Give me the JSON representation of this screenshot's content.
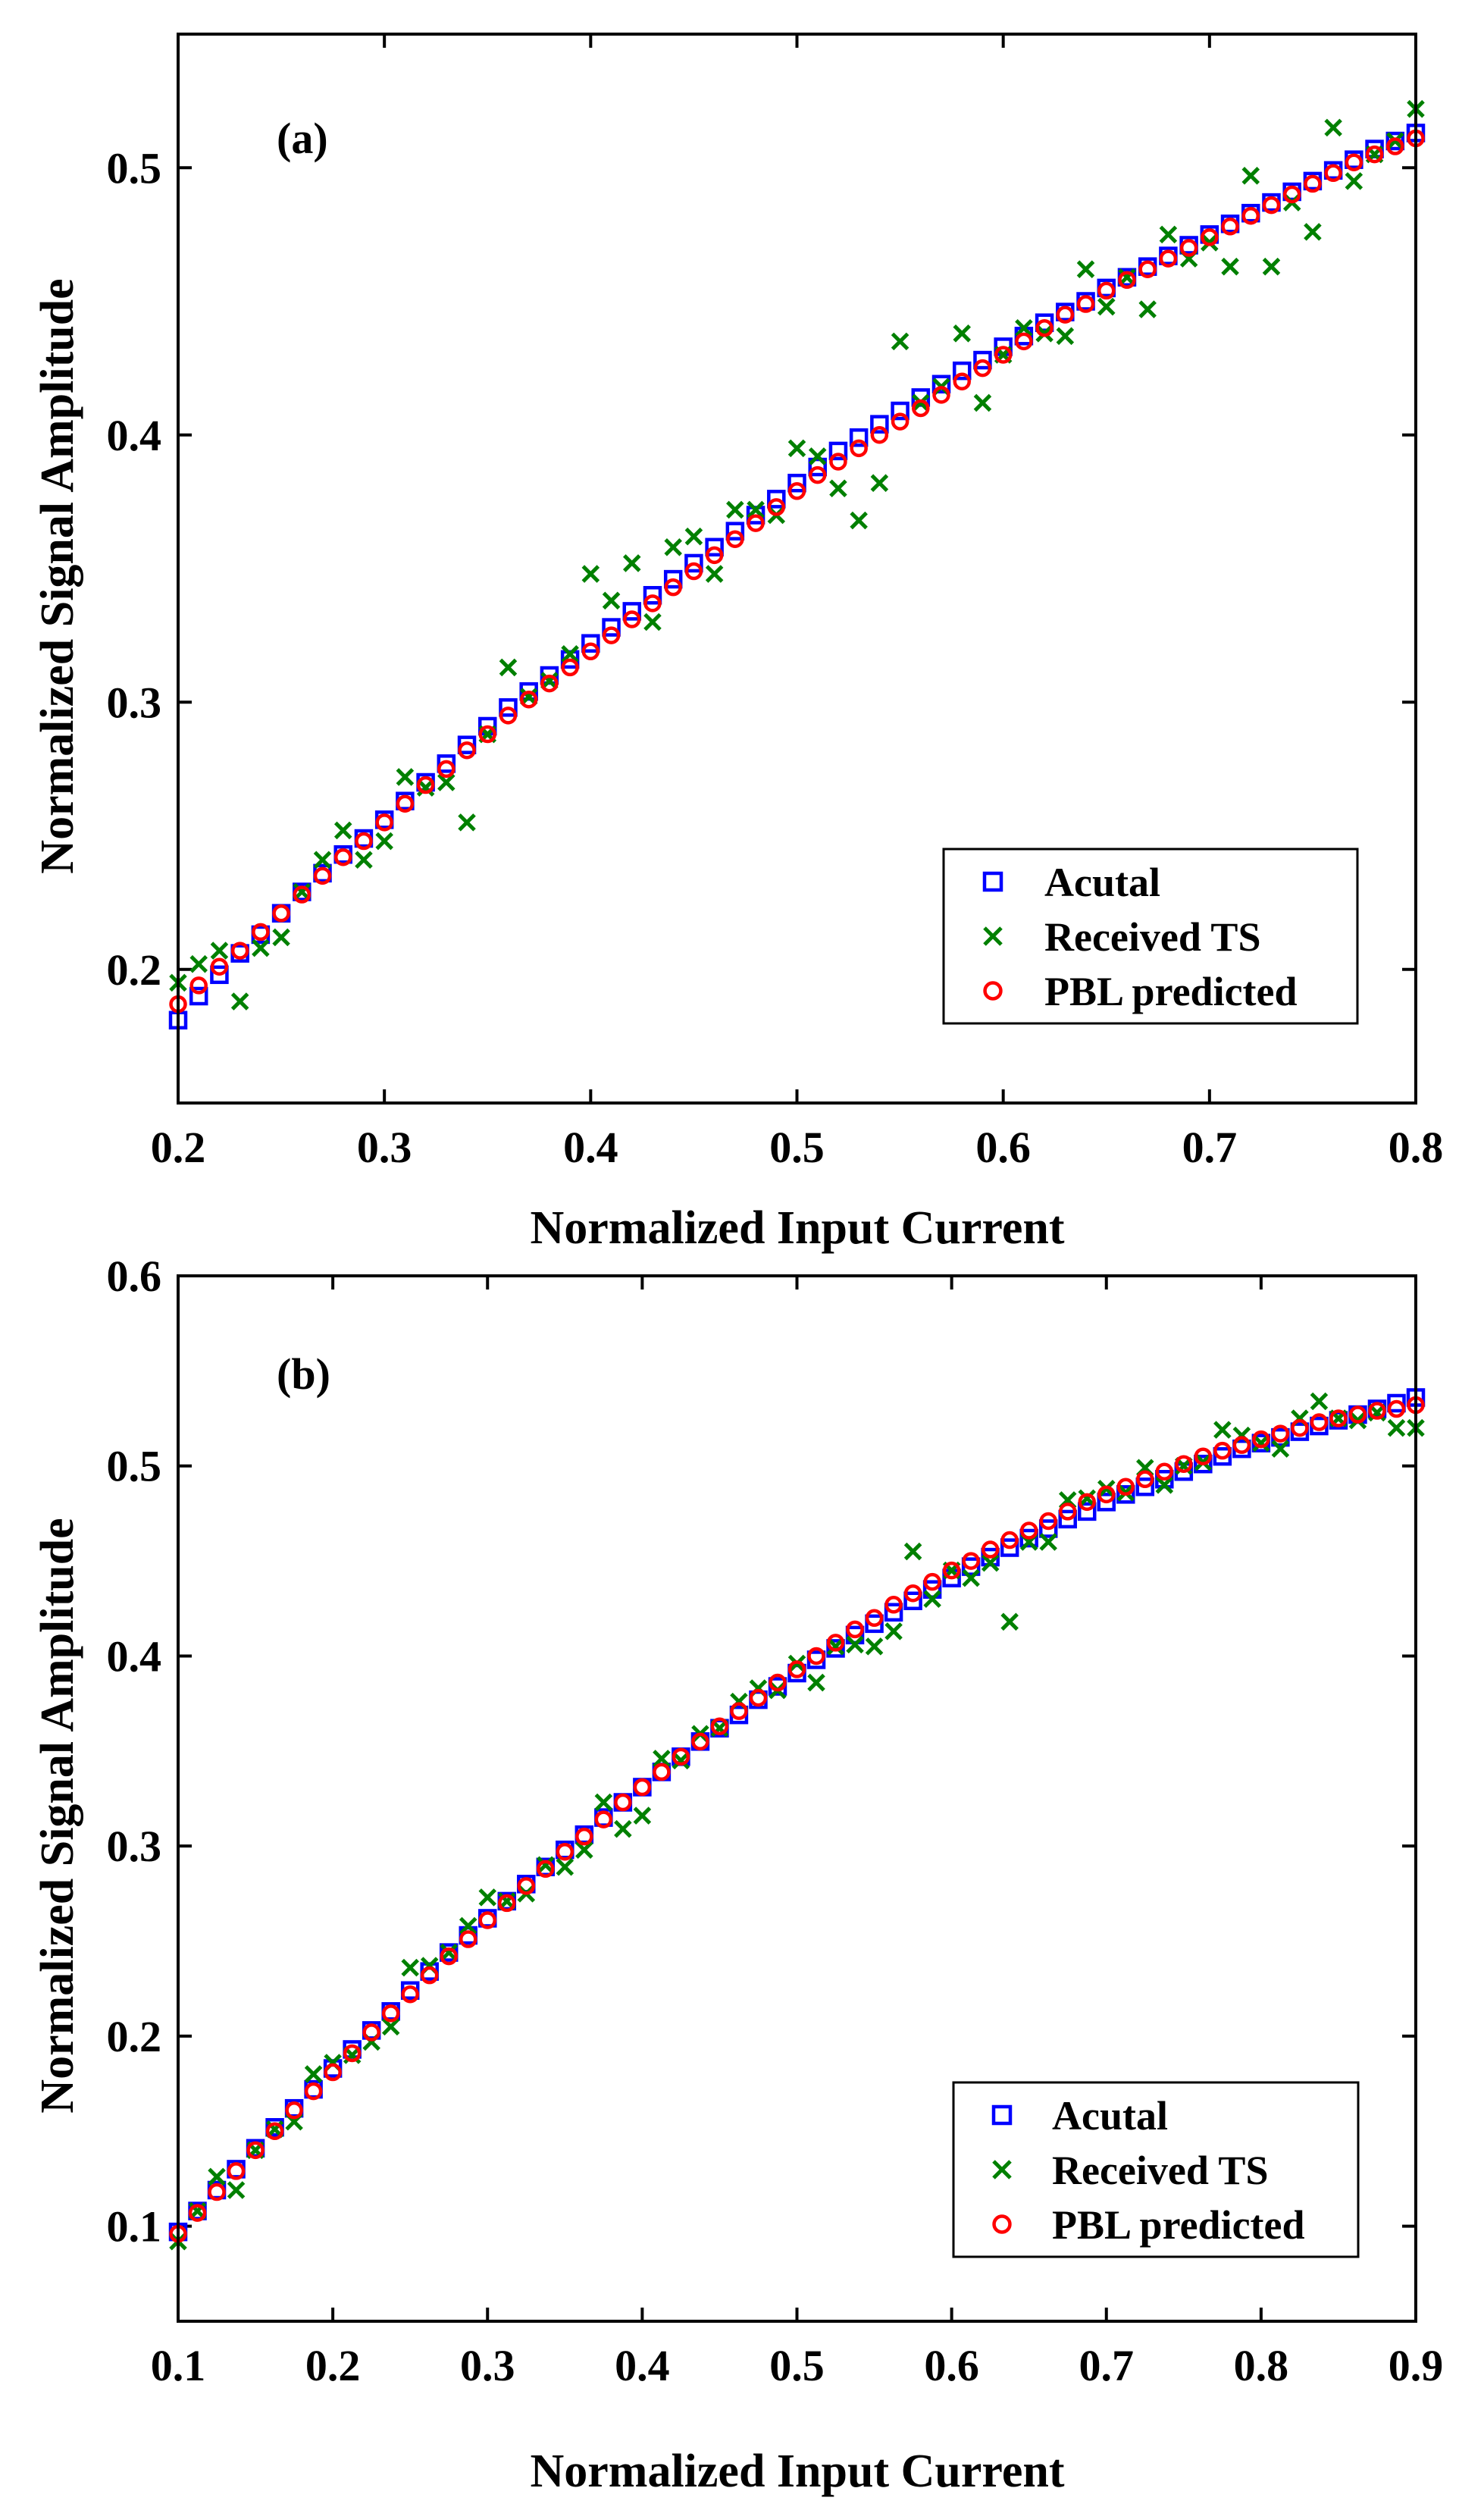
{
  "chart_data": [
    {
      "type": "scatter",
      "panel_label": "(a)",
      "xlabel": "Normalized Input Current",
      "ylabel": "Normalized Signal Amplitude",
      "xlim": [
        0.2,
        0.8
      ],
      "ylim": [
        0.15,
        0.55
      ],
      "xticks": [
        0.2,
        0.3,
        0.4,
        0.5,
        0.6,
        0.7,
        0.8
      ],
      "yticks": [
        0.2,
        0.3,
        0.4,
        0.5
      ],
      "xtick_labels": [
        "0.2",
        "0.3",
        "0.4",
        "0.5",
        "0.6",
        "0.7",
        "0.8"
      ],
      "ytick_labels": [
        "0.2",
        "0.3",
        "0.4",
        "0.5"
      ],
      "legend_position": "bottom-right",
      "series": [
        {
          "name": "Acutal",
          "marker": "square",
          "color": "#0000ff",
          "x": [
            0.2,
            0.21,
            0.22,
            0.23,
            0.24,
            0.25,
            0.26,
            0.27,
            0.28,
            0.29,
            0.3,
            0.31,
            0.32,
            0.33,
            0.34,
            0.35,
            0.36,
            0.37,
            0.38,
            0.39,
            0.4,
            0.41,
            0.42,
            0.43,
            0.44,
            0.45,
            0.46,
            0.47,
            0.48,
            0.49,
            0.5,
            0.51,
            0.52,
            0.53,
            0.54,
            0.55,
            0.56,
            0.57,
            0.58,
            0.59,
            0.6,
            0.61,
            0.62,
            0.63,
            0.64,
            0.65,
            0.66,
            0.67,
            0.68,
            0.69,
            0.7,
            0.71,
            0.72,
            0.73,
            0.74,
            0.75,
            0.76,
            0.77,
            0.78,
            0.79,
            0.8
          ],
          "y": [
            0.181,
            0.19,
            0.198,
            0.206,
            0.213,
            0.221,
            0.229,
            0.236,
            0.243,
            0.249,
            0.256,
            0.263,
            0.27,
            0.277,
            0.284,
            0.291,
            0.298,
            0.304,
            0.31,
            0.316,
            0.322,
            0.328,
            0.334,
            0.34,
            0.346,
            0.352,
            0.358,
            0.364,
            0.37,
            0.376,
            0.382,
            0.388,
            0.394,
            0.399,
            0.404,
            0.409,
            0.414,
            0.419,
            0.424,
            0.428,
            0.433,
            0.437,
            0.442,
            0.446,
            0.45,
            0.455,
            0.459,
            0.463,
            0.467,
            0.471,
            0.475,
            0.479,
            0.483,
            0.487,
            0.491,
            0.495,
            0.499,
            0.503,
            0.507,
            0.51,
            0.513
          ]
        },
        {
          "name": "Received TS",
          "marker": "x",
          "color": "#008000",
          "x": [
            0.2,
            0.21,
            0.22,
            0.23,
            0.24,
            0.25,
            0.26,
            0.27,
            0.28,
            0.29,
            0.3,
            0.31,
            0.32,
            0.33,
            0.34,
            0.35,
            0.36,
            0.37,
            0.38,
            0.39,
            0.4,
            0.41,
            0.42,
            0.43,
            0.44,
            0.45,
            0.46,
            0.47,
            0.48,
            0.49,
            0.5,
            0.51,
            0.52,
            0.53,
            0.54,
            0.55,
            0.56,
            0.57,
            0.58,
            0.59,
            0.6,
            0.61,
            0.62,
            0.63,
            0.64,
            0.65,
            0.66,
            0.67,
            0.68,
            0.69,
            0.7,
            0.71,
            0.72,
            0.73,
            0.74,
            0.75,
            0.76,
            0.77,
            0.78,
            0.79,
            0.8
          ],
          "y": [
            0.195,
            0.202,
            0.207,
            0.188,
            0.208,
            0.212,
            0.229,
            0.241,
            0.252,
            0.241,
            0.248,
            0.272,
            0.268,
            0.27,
            0.255,
            0.288,
            0.313,
            0.302,
            0.308,
            0.318,
            0.348,
            0.338,
            0.352,
            0.33,
            0.358,
            0.362,
            0.348,
            0.372,
            0.372,
            0.37,
            0.395,
            0.392,
            0.38,
            0.368,
            0.382,
            0.435,
            0.412,
            0.418,
            0.438,
            0.412,
            0.43,
            0.44,
            0.438,
            0.437,
            0.462,
            0.448,
            0.459,
            0.447,
            0.475,
            0.466,
            0.472,
            0.463,
            0.497,
            0.463,
            0.487,
            0.476,
            0.515,
            0.495,
            0.505,
            0.51,
            0.522
          ]
        },
        {
          "name": "PBL predicted",
          "marker": "circle",
          "color": "#ff0000",
          "x": [
            0.2,
            0.21,
            0.22,
            0.23,
            0.24,
            0.25,
            0.26,
            0.27,
            0.28,
            0.29,
            0.3,
            0.31,
            0.32,
            0.33,
            0.34,
            0.35,
            0.36,
            0.37,
            0.38,
            0.39,
            0.4,
            0.41,
            0.42,
            0.43,
            0.44,
            0.45,
            0.46,
            0.47,
            0.48,
            0.49,
            0.5,
            0.51,
            0.52,
            0.53,
            0.54,
            0.55,
            0.56,
            0.57,
            0.58,
            0.59,
            0.6,
            0.61,
            0.62,
            0.63,
            0.64,
            0.65,
            0.66,
            0.67,
            0.68,
            0.69,
            0.7,
            0.71,
            0.72,
            0.73,
            0.74,
            0.75,
            0.76,
            0.77,
            0.78,
            0.79,
            0.8
          ],
          "y": [
            0.187,
            0.194,
            0.201,
            0.207,
            0.214,
            0.221,
            0.228,
            0.235,
            0.242,
            0.248,
            0.255,
            0.262,
            0.269,
            0.275,
            0.282,
            0.288,
            0.295,
            0.301,
            0.307,
            0.313,
            0.319,
            0.325,
            0.331,
            0.337,
            0.343,
            0.349,
            0.355,
            0.361,
            0.367,
            0.373,
            0.379,
            0.385,
            0.39,
            0.395,
            0.4,
            0.405,
            0.41,
            0.415,
            0.42,
            0.425,
            0.43,
            0.435,
            0.44,
            0.445,
            0.449,
            0.454,
            0.458,
            0.462,
            0.466,
            0.47,
            0.474,
            0.478,
            0.482,
            0.486,
            0.49,
            0.494,
            0.498,
            0.502,
            0.505,
            0.508,
            0.511
          ]
        }
      ]
    },
    {
      "type": "scatter",
      "panel_label": "(b)",
      "xlabel": "Normalized Input Current",
      "ylabel": "Normalized Signal Amplitude",
      "xlim": [
        0.1,
        0.9
      ],
      "ylim": [
        0.05,
        0.6
      ],
      "xticks": [
        0.1,
        0.2,
        0.3,
        0.4,
        0.5,
        0.6,
        0.7,
        0.8,
        0.9
      ],
      "yticks": [
        0.1,
        0.2,
        0.3,
        0.4,
        0.5,
        0.6
      ],
      "xtick_labels": [
        "0.1",
        "0.2",
        "0.3",
        "0.4",
        "0.5",
        "0.6",
        "0.7",
        "0.8",
        "0.9"
      ],
      "ytick_labels": [
        "0.1",
        "0.2",
        "0.3",
        "0.4",
        "0.5",
        "0.6"
      ],
      "legend_position": "bottom-right",
      "series": [
        {
          "name": "Acutal",
          "marker": "square",
          "color": "#0000ff",
          "x": [
            0.1,
            0.1125,
            0.125,
            0.1375,
            0.15,
            0.1625,
            0.175,
            0.1875,
            0.2,
            0.2125,
            0.225,
            0.2375,
            0.25,
            0.2625,
            0.275,
            0.2875,
            0.3,
            0.3125,
            0.325,
            0.3375,
            0.35,
            0.3625,
            0.375,
            0.3875,
            0.4,
            0.4125,
            0.425,
            0.4375,
            0.45,
            0.4625,
            0.475,
            0.4875,
            0.5,
            0.5125,
            0.525,
            0.5375,
            0.55,
            0.5625,
            0.575,
            0.5875,
            0.6,
            0.6125,
            0.625,
            0.6375,
            0.65,
            0.6625,
            0.675,
            0.6875,
            0.7,
            0.7125,
            0.725,
            0.7375,
            0.75,
            0.7625,
            0.775,
            0.7875,
            0.8,
            0.8125,
            0.825,
            0.8375,
            0.85,
            0.8625,
            0.875,
            0.8875,
            0.9
          ],
          "y": [
            0.097,
            0.108,
            0.119,
            0.13,
            0.141,
            0.152,
            0.162,
            0.172,
            0.183,
            0.193,
            0.203,
            0.213,
            0.224,
            0.234,
            0.244,
            0.253,
            0.262,
            0.271,
            0.28,
            0.289,
            0.298,
            0.306,
            0.315,
            0.323,
            0.331,
            0.339,
            0.347,
            0.355,
            0.362,
            0.369,
            0.377,
            0.384,
            0.391,
            0.398,
            0.404,
            0.411,
            0.417,
            0.423,
            0.429,
            0.435,
            0.441,
            0.447,
            0.452,
            0.457,
            0.462,
            0.467,
            0.472,
            0.476,
            0.481,
            0.485,
            0.489,
            0.493,
            0.497,
            0.501,
            0.505,
            0.509,
            0.512,
            0.515,
            0.518,
            0.521,
            0.524,
            0.527,
            0.53,
            0.533,
            0.536
          ]
        },
        {
          "name": "Received TS",
          "marker": "x",
          "color": "#008000",
          "x": [
            0.1,
            0.1125,
            0.125,
            0.1375,
            0.15,
            0.1625,
            0.175,
            0.1875,
            0.2,
            0.2125,
            0.225,
            0.2375,
            0.25,
            0.2625,
            0.275,
            0.2875,
            0.3,
            0.3125,
            0.325,
            0.3375,
            0.35,
            0.3625,
            0.375,
            0.3875,
            0.4,
            0.4125,
            0.425,
            0.4375,
            0.45,
            0.4625,
            0.475,
            0.4875,
            0.5,
            0.5125,
            0.525,
            0.5375,
            0.55,
            0.5625,
            0.575,
            0.5875,
            0.6,
            0.6125,
            0.625,
            0.6375,
            0.65,
            0.6625,
            0.675,
            0.6875,
            0.7,
            0.7125,
            0.725,
            0.7375,
            0.75,
            0.7625,
            0.775,
            0.7875,
            0.8,
            0.8125,
            0.825,
            0.8375,
            0.85,
            0.8625,
            0.875,
            0.8875,
            0.9
          ],
          "y": [
            0.092,
            0.108,
            0.126,
            0.119,
            0.14,
            0.151,
            0.155,
            0.18,
            0.186,
            0.19,
            0.197,
            0.205,
            0.236,
            0.237,
            0.244,
            0.258,
            0.273,
            0.271,
            0.275,
            0.29,
            0.289,
            0.298,
            0.323,
            0.309,
            0.316,
            0.346,
            0.345,
            0.359,
            0.362,
            0.376,
            0.383,
            0.382,
            0.396,
            0.386,
            0.405,
            0.406,
            0.405,
            0.413,
            0.455,
            0.43,
            0.445,
            0.441,
            0.449,
            0.418,
            0.46,
            0.46,
            0.482,
            0.483,
            0.488,
            0.486,
            0.499,
            0.49,
            0.5,
            0.502,
            0.519,
            0.516,
            0.512,
            0.509,
            0.525,
            0.534,
            0.525,
            0.524,
            0.528,
            0.52,
            0.52
          ]
        },
        {
          "name": "PBL predicted",
          "marker": "circle",
          "color": "#ff0000",
          "x": [
            0.1,
            0.1125,
            0.125,
            0.1375,
            0.15,
            0.1625,
            0.175,
            0.1875,
            0.2,
            0.2125,
            0.225,
            0.2375,
            0.25,
            0.2625,
            0.275,
            0.2875,
            0.3,
            0.3125,
            0.325,
            0.3375,
            0.35,
            0.3625,
            0.375,
            0.3875,
            0.4,
            0.4125,
            0.425,
            0.4375,
            0.45,
            0.4625,
            0.475,
            0.4875,
            0.5,
            0.5125,
            0.525,
            0.5375,
            0.55,
            0.5625,
            0.575,
            0.5875,
            0.6,
            0.6125,
            0.625,
            0.6375,
            0.65,
            0.6625,
            0.675,
            0.6875,
            0.7,
            0.7125,
            0.725,
            0.7375,
            0.75,
            0.7625,
            0.775,
            0.7875,
            0.8,
            0.8125,
            0.825,
            0.8375,
            0.85,
            0.8625,
            0.875,
            0.8875,
            0.9
          ],
          "y": [
            0.096,
            0.107,
            0.118,
            0.129,
            0.14,
            0.15,
            0.161,
            0.171,
            0.181,
            0.191,
            0.202,
            0.212,
            0.222,
            0.232,
            0.242,
            0.251,
            0.261,
            0.27,
            0.279,
            0.288,
            0.297,
            0.305,
            0.314,
            0.323,
            0.331,
            0.339,
            0.347,
            0.355,
            0.363,
            0.371,
            0.378,
            0.386,
            0.393,
            0.4,
            0.407,
            0.414,
            0.42,
            0.427,
            0.433,
            0.439,
            0.445,
            0.45,
            0.456,
            0.461,
            0.466,
            0.471,
            0.476,
            0.481,
            0.485,
            0.489,
            0.493,
            0.497,
            0.501,
            0.505,
            0.508,
            0.511,
            0.514,
            0.517,
            0.52,
            0.523,
            0.525,
            0.527,
            0.529,
            0.53,
            0.532
          ]
        }
      ]
    }
  ]
}
